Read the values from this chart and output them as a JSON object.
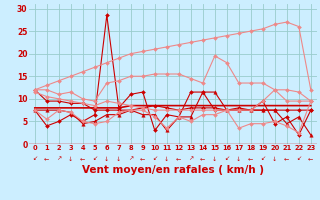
{
  "background_color": "#cceeff",
  "grid_color": "#99cccc",
  "xlabel": "Vent moyen/en rafales ( km/h )",
  "xlabel_color": "#cc0000",
  "xlabel_fontsize": 7.5,
  "tick_color": "#cc0000",
  "yticks": [
    0,
    5,
    10,
    15,
    20,
    25,
    30
  ],
  "xticks": [
    0,
    1,
    2,
    3,
    4,
    5,
    6,
    7,
    8,
    9,
    10,
    11,
    12,
    13,
    14,
    15,
    16,
    17,
    18,
    19,
    20,
    21,
    22,
    23
  ],
  "x": [
    0,
    1,
    2,
    3,
    4,
    5,
    6,
    7,
    8,
    9,
    10,
    11,
    12,
    13,
    14,
    15,
    16,
    17,
    18,
    19,
    20,
    21,
    22,
    23
  ],
  "series": [
    {
      "y": [
        7.5,
        4.0,
        5.0,
        6.5,
        5.0,
        6.5,
        28.5,
        8.0,
        11.0,
        11.5,
        3.0,
        6.5,
        6.0,
        11.5,
        11.5,
        7.5,
        7.5,
        7.5,
        7.5,
        9.5,
        4.5,
        6.0,
        2.0,
        7.5
      ],
      "color": "#cc0000",
      "lw": 0.8,
      "marker": "D",
      "ms": 2.0,
      "alpha": 1.0
    },
    {
      "y": [
        12.0,
        9.5,
        9.5,
        9.0,
        9.0,
        7.5,
        7.5,
        7.5,
        7.5,
        8.0,
        8.5,
        8.0,
        7.5,
        8.0,
        8.0,
        8.0,
        7.5,
        8.0,
        7.5,
        7.5,
        7.5,
        7.5,
        7.5,
        7.5
      ],
      "color": "#cc0000",
      "lw": 0.8,
      "marker": "D",
      "ms": 2.0,
      "alpha": 1.0
    },
    {
      "y": [
        7.5,
        7.5,
        7.5,
        7.0,
        4.5,
        5.0,
        6.5,
        6.5,
        7.5,
        6.5,
        6.5,
        3.0,
        6.0,
        6.0,
        11.5,
        11.5,
        7.5,
        7.5,
        7.5,
        7.5,
        7.5,
        4.5,
        6.0,
        2.0
      ],
      "color": "#cc0000",
      "lw": 0.8,
      "marker": "^",
      "ms": 2.5,
      "alpha": 1.0
    },
    {
      "y": [
        8.0,
        8.0,
        8.0,
        8.0,
        8.0,
        8.0,
        8.0,
        8.0,
        8.5,
        8.5,
        8.5,
        8.5,
        8.5,
        8.5,
        8.5,
        8.5,
        8.5,
        8.5,
        8.5,
        8.5,
        8.5,
        8.5,
        8.5,
        8.5
      ],
      "color": "#cc0000",
      "lw": 1.2,
      "marker": null,
      "ms": 0,
      "alpha": 1.0
    },
    {
      "y": [
        11.5,
        10.5,
        10.0,
        9.5,
        9.0,
        8.5,
        9.5,
        9.0,
        8.5,
        8.0,
        7.5,
        7.5,
        7.5,
        7.5,
        7.5,
        7.5,
        7.5,
        7.5,
        7.5,
        9.5,
        12.0,
        9.5,
        9.5,
        9.5
      ],
      "color": "#ee8888",
      "lw": 0.8,
      "marker": "D",
      "ms": 2.0,
      "alpha": 1.0
    },
    {
      "y": [
        7.5,
        5.5,
        7.5,
        7.0,
        5.0,
        4.5,
        5.0,
        7.0,
        7.5,
        7.5,
        6.0,
        3.5,
        6.0,
        5.0,
        6.5,
        6.5,
        7.5,
        3.5,
        4.5,
        4.5,
        5.0,
        4.0,
        2.5,
        9.5
      ],
      "color": "#ee8888",
      "lw": 0.8,
      "marker": "D",
      "ms": 2.0,
      "alpha": 1.0
    },
    {
      "y": [
        12.0,
        12.0,
        11.0,
        11.5,
        10.0,
        9.5,
        13.5,
        14.0,
        15.0,
        15.0,
        15.5,
        15.5,
        15.5,
        14.5,
        13.5,
        19.5,
        18.0,
        13.5,
        13.5,
        13.5,
        12.0,
        12.0,
        11.5,
        9.5
      ],
      "color": "#ee8888",
      "lw": 0.8,
      "marker": "D",
      "ms": 2.0,
      "alpha": 1.0
    },
    {
      "y": [
        12.0,
        13.0,
        14.0,
        15.0,
        16.0,
        17.0,
        18.0,
        19.0,
        20.0,
        20.5,
        21.0,
        21.5,
        22.0,
        22.5,
        23.0,
        23.5,
        24.0,
        24.5,
        25.0,
        25.5,
        26.5,
        27.0,
        26.0,
        12.0
      ],
      "color": "#ee8888",
      "lw": 0.8,
      "marker": "D",
      "ms": 2.0,
      "alpha": 1.0
    }
  ],
  "arrow_chars": [
    "↙",
    "←",
    "↗",
    "↓",
    "←",
    "↙",
    "↓",
    "↓",
    "↗",
    "←",
    "↙",
    "↓",
    "←",
    "↗",
    "←",
    "↓",
    "↙",
    "↓",
    "←",
    "↙",
    "↓",
    "←",
    "↙",
    "←"
  ],
  "ylim": [
    0,
    31
  ],
  "xlim": [
    -0.5,
    23.5
  ]
}
